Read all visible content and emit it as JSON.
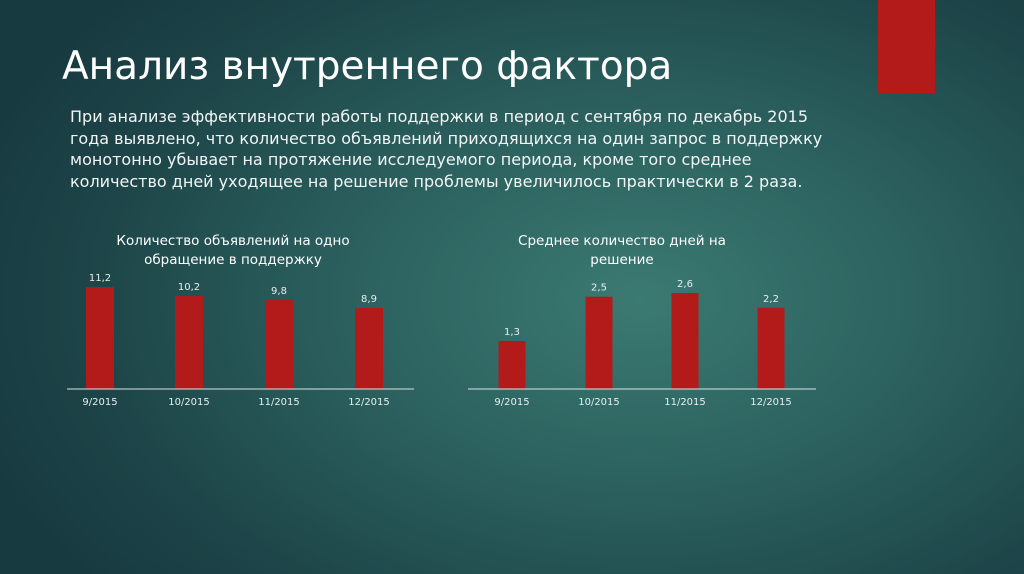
{
  "title": "Анализ внутреннего фактора",
  "accent_color": "#b31b1b",
  "paragraph": [
    "При анализе эффективности работы поддержки в период с сентября по декабрь 2015",
    "года выявлено, что количество объявлений приходящихся на один запрос в поддержку",
    "монотонно убывает на протяжение исследуемого периода, кроме того среднее",
    "количество дней уходящее на решение проблемы увеличилось практически в 2 раза."
  ],
  "chart_data": [
    {
      "type": "bar",
      "title": [
        "Количество объявлений на одно",
        "обращение в поддержку"
      ],
      "categories": [
        "9/2015",
        "10/2015",
        "11/2015",
        "12/2015"
      ],
      "values": [
        11.2,
        10.2,
        9.8,
        8.9
      ],
      "data_labels": [
        "11,2",
        "10,2",
        "9,8",
        "8,9"
      ],
      "bar_color": "#b31b1b",
      "grid": false,
      "ylim": [
        0,
        11.2
      ]
    },
    {
      "type": "bar",
      "title": [
        "Среднее количество дней на",
        "решение"
      ],
      "categories": [
        "9/2015",
        "10/2015",
        "11/2015",
        "12/2015"
      ],
      "values": [
        1.3,
        2.5,
        2.6,
        2.2
      ],
      "data_labels": [
        "1,3",
        "2,5",
        "2,6",
        "2,2"
      ],
      "bar_color": "#b31b1b",
      "grid": false,
      "ylim": [
        0,
        2.6
      ]
    }
  ]
}
